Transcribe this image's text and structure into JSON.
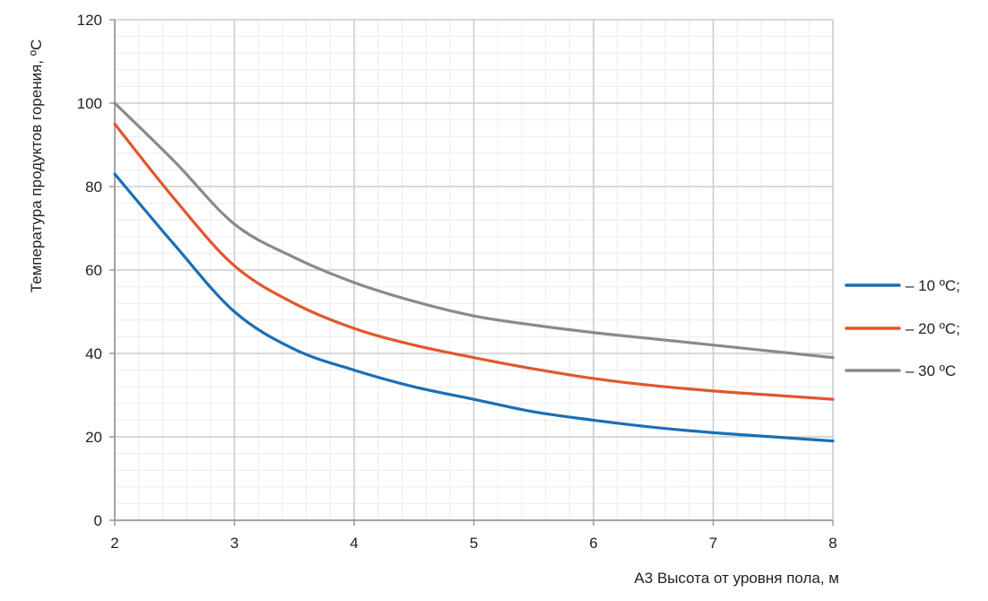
{
  "chart_data": {
    "type": "line",
    "title": "",
    "xlabel": "A3 Высота от уровня пола, м",
    "ylabel": "Температура продуктов горения, ºС",
    "xlim": [
      2,
      8
    ],
    "ylim": [
      0,
      120
    ],
    "x_ticks": [
      "2",
      "3",
      "4",
      "5",
      "6",
      "7",
      "8"
    ],
    "y_ticks": [
      "0",
      "20",
      "40",
      "60",
      "80",
      "100",
      "120"
    ],
    "grid": true,
    "legend_position": "right",
    "series": [
      {
        "name": "– 10 ºС;",
        "color": "#1a6fb5",
        "points": [
          [
            2,
            83
          ],
          [
            2.5,
            66
          ],
          [
            3,
            50
          ],
          [
            3.5,
            41
          ],
          [
            4,
            36
          ],
          [
            4.5,
            32
          ],
          [
            5,
            29
          ],
          [
            5.5,
            26
          ],
          [
            6,
            24
          ],
          [
            6.5,
            22.3
          ],
          [
            7,
            21
          ],
          [
            7.5,
            20
          ],
          [
            8,
            19
          ]
        ]
      },
      {
        "name": "– 20 ºС;",
        "color": "#e2572b",
        "points": [
          [
            2,
            95
          ],
          [
            2.5,
            77
          ],
          [
            3,
            61
          ],
          [
            3.5,
            52
          ],
          [
            4,
            46
          ],
          [
            4.5,
            42
          ],
          [
            5,
            39
          ],
          [
            5.5,
            36.3
          ],
          [
            6,
            34
          ],
          [
            6.5,
            32.3
          ],
          [
            7,
            31
          ],
          [
            7.5,
            30
          ],
          [
            8,
            29
          ]
        ]
      },
      {
        "name": "– 30 ºС",
        "color": "#8a8a8a",
        "points": [
          [
            2,
            100
          ],
          [
            2.5,
            86
          ],
          [
            3,
            71
          ],
          [
            3.5,
            63
          ],
          [
            4,
            57
          ],
          [
            4.5,
            52.5
          ],
          [
            5,
            49
          ],
          [
            5.5,
            46.8
          ],
          [
            6,
            45
          ],
          [
            6.5,
            43.5
          ],
          [
            7,
            42
          ],
          [
            7.5,
            40.5
          ],
          [
            8,
            39
          ]
        ]
      }
    ]
  }
}
